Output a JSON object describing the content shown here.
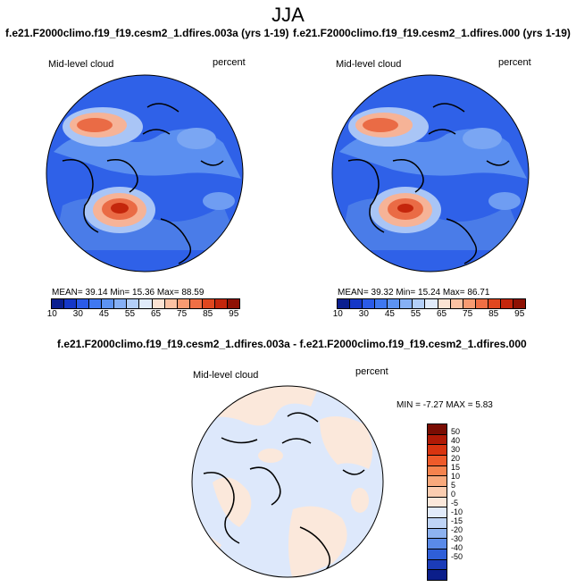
{
  "season": "JJA",
  "panels": [
    {
      "title": "f.e21.F2000climo.f19_f19.cesm2_1.dfires.003a (yrs 1-19)",
      "variable": "Mid-level cloud",
      "units": "percent",
      "stats": "MEAN=  39.14  Min=  15.36  Max=  88.59"
    },
    {
      "title": "f.e21.F2000climo.f19_f19.cesm2_1.dfires.000 (yrs 1-19)",
      "variable": "Mid-level cloud",
      "units": "percent",
      "stats": "MEAN=  39.32  Min=  15.24  Max=  86.71"
    }
  ],
  "abs_colorbar": {
    "colors": [
      "#0a1f8f",
      "#1538c8",
      "#2a5be8",
      "#3f78f0",
      "#5d93f2",
      "#86b0f5",
      "#b3cff8",
      "#e0ebfa",
      "#fbe3d3",
      "#fbc2a3",
      "#f89b72",
      "#f06f45",
      "#e0471f",
      "#c4260c",
      "#8f1204"
    ],
    "labels": [
      "10",
      "",
      "30",
      "",
      "45",
      "",
      "55",
      "",
      "65",
      "",
      "75",
      "",
      "85",
      "",
      "95"
    ]
  },
  "diff_panel": {
    "title": "f.e21.F2000climo.f19_f19.cesm2_1.dfires.003a - f.e21.F2000climo.f19_f19.cesm2_1.dfires.000",
    "variable": "Mid-level cloud",
    "units": "percent",
    "stats": "MIN =   -7.27  MAX =    5.83"
  },
  "diff_colorbar": {
    "colors": [
      "#7a0d03",
      "#b01a06",
      "#d83410",
      "#ee5a2a",
      "#f5834e",
      "#f8a97c",
      "#fbcdb0",
      "#fbe8db",
      "#e2ebfa",
      "#bfd4f6",
      "#8db2f0",
      "#5a8ae8",
      "#2f5fd8",
      "#1b3cb8",
      "#0b1e8a"
    ],
    "labels": [
      "50",
      "40",
      "30",
      "20",
      "15",
      "10",
      "5",
      "0",
      "-5",
      "-10",
      "-15",
      "-20",
      "-30",
      "-40",
      "-50"
    ]
  }
}
